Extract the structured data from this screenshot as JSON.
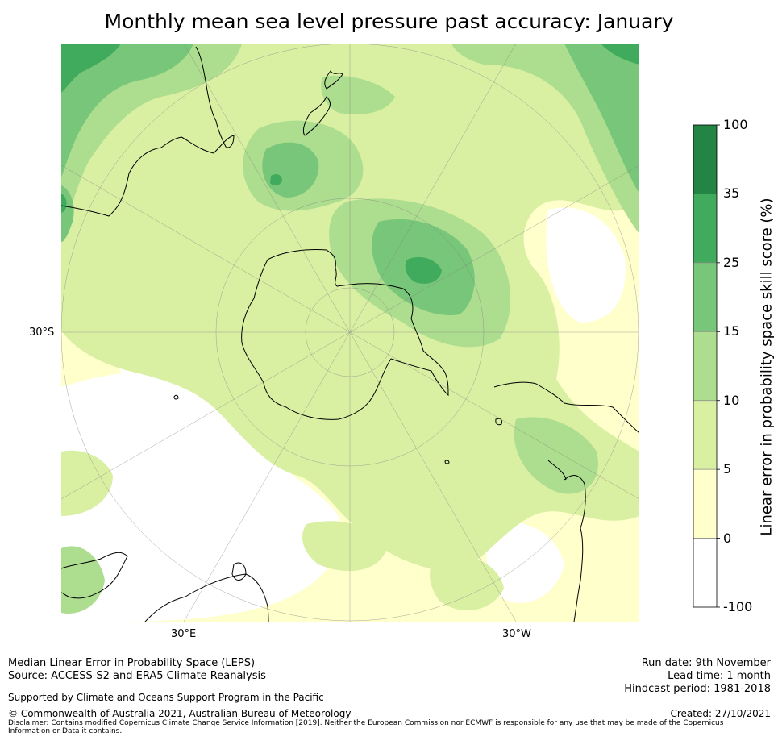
{
  "title": "Monthly mean sea level pressure past accuracy: January",
  "map": {
    "projection": "south-polar-stereographic",
    "graticule_labels": {
      "left": "30°S",
      "bottom_left": "30°E",
      "bottom_right": "30°W"
    },
    "land_features": [
      "Antarctica",
      "Australia",
      "New Zealand",
      "South America",
      "Southern Africa",
      "Madagascar",
      "Falkland Islands"
    ]
  },
  "colorbar": {
    "title": "Linear error in probability space skill score (%)",
    "ticks": [
      "100",
      "35",
      "25",
      "15",
      "10",
      "5",
      "0",
      "-100"
    ],
    "bins": [
      {
        "range": "-100 to 0",
        "color": "#ffffff"
      },
      {
        "range": "0 to 5",
        "color": "#ffffcc"
      },
      {
        "range": "5 to 10",
        "color": "#d9f0a3"
      },
      {
        "range": "10 to 15",
        "color": "#addd8e"
      },
      {
        "range": "15 to 25",
        "color": "#78c679"
      },
      {
        "range": "25 to 35",
        "color": "#41ab5d"
      },
      {
        "range": "35 to 100",
        "color": "#238443"
      }
    ]
  },
  "footer": {
    "left_line1": "Median Linear Error in Probability Space (LEPS)",
    "left_line2": "Source: ACCESS-S2 and ERA5 Climate Reanalysis",
    "support": "Supported by Climate and Oceans Support Program in the Pacific",
    "copyright": "© Commonwealth of Australia 2021, Australian Bureau of Meteorology",
    "disclaimer": "Disclaimer: Contains modified Copernicus Climate Change Service Information [2019]. Neither the European Commission nor ECMWF is responsible for any use that may be made of the Copernicus Information or Data it contains.",
    "run_date": "Run date: 9th November",
    "lead_time": "Lead time: 1 month",
    "hindcast": "Hindcast period: 1981-2018",
    "created": "Created: 27/10/2021"
  }
}
